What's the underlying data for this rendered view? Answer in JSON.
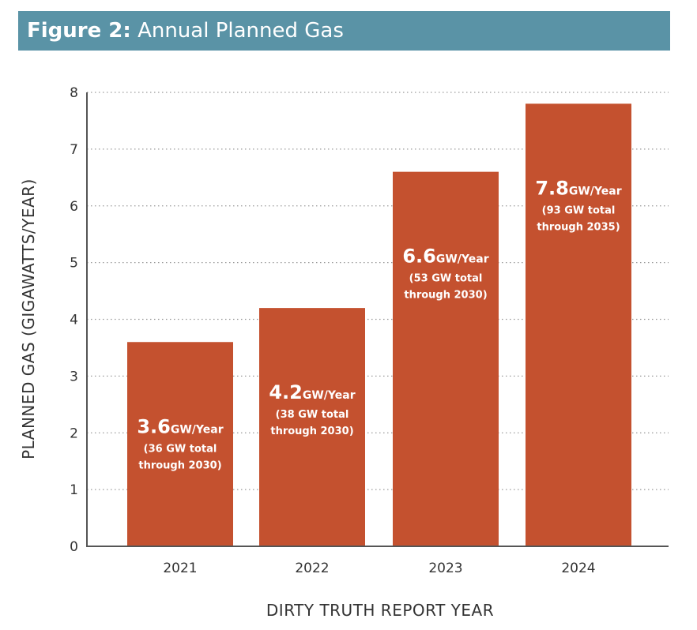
{
  "header": {
    "prefix": "Figure 2:",
    "title": "Annual Planned Gas",
    "background_color": "#5a93a6"
  },
  "chart_data": {
    "type": "bar",
    "title": "Figure 2: Annual Planned Gas",
    "categories": [
      "2021",
      "2022",
      "2023",
      "2024"
    ],
    "values": [
      3.6,
      4.2,
      6.6,
      7.8
    ],
    "xlabel": "DIRTY TRUTH REPORT YEAR",
    "ylabel": "PLANNED GAS (GIGAWATTS/YEAR)",
    "ylim": [
      0,
      8
    ],
    "yticks": [
      0,
      1,
      2,
      3,
      4,
      5,
      6,
      7,
      8
    ],
    "grid": "horizontal dotted",
    "bar_color": "#c4512f",
    "data_labels": [
      {
        "value": "3.6",
        "unit": "GW/Year",
        "line1": "(36 GW total",
        "line2": "through 2030)"
      },
      {
        "value": "4.2",
        "unit": "GW/Year",
        "line1": "(38 GW total",
        "line2": "through 2030)"
      },
      {
        "value": "6.6",
        "unit": "GW/Year",
        "line1": "(53 GW total",
        "line2": "through 2030)"
      },
      {
        "value": "7.8",
        "unit": "GW/Year",
        "line1": "(93 GW total",
        "line2": "through 2035)"
      }
    ]
  }
}
